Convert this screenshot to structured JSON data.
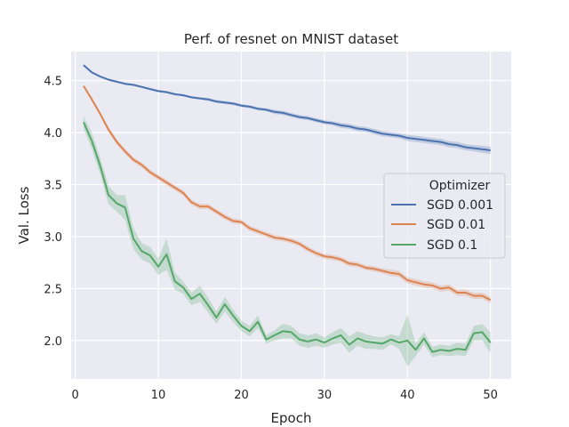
{
  "chart_data": {
    "type": "line",
    "title": "Perf. of resnet on MNIST dataset",
    "xlabel": "Epoch",
    "ylabel": "Val. Loss",
    "xlim": [
      -0.5,
      52.5
    ],
    "ylim": [
      1.63,
      4.78
    ],
    "xticks": [
      0,
      10,
      20,
      30,
      40,
      50
    ],
    "yticks": [
      2.0,
      2.5,
      3.0,
      3.5,
      4.0,
      4.5
    ],
    "ytick_labels": [
      "2.0",
      "2.5",
      "3.0",
      "3.5",
      "4.0",
      "4.5"
    ],
    "grid": true,
    "background": "#eaeaf2",
    "legend": {
      "title": "Optimizer",
      "placement": "center-right"
    },
    "x": [
      1,
      2,
      3,
      4,
      5,
      6,
      7,
      8,
      9,
      10,
      11,
      12,
      13,
      14,
      15,
      16,
      17,
      18,
      19,
      20,
      21,
      22,
      23,
      24,
      25,
      26,
      27,
      28,
      29,
      30,
      31,
      32,
      33,
      34,
      35,
      36,
      37,
      38,
      39,
      40,
      41,
      42,
      43,
      44,
      45,
      46,
      47,
      48,
      49,
      50
    ],
    "series": [
      {
        "name": "SGD 0.001",
        "color": "#4c72b0",
        "values": [
          4.65,
          4.58,
          4.54,
          4.51,
          4.49,
          4.47,
          4.46,
          4.44,
          4.42,
          4.4,
          4.39,
          4.37,
          4.36,
          4.34,
          4.33,
          4.32,
          4.3,
          4.29,
          4.28,
          4.26,
          4.25,
          4.23,
          4.22,
          4.2,
          4.19,
          4.17,
          4.15,
          4.14,
          4.12,
          4.1,
          4.09,
          4.07,
          4.06,
          4.04,
          4.03,
          4.01,
          3.99,
          3.98,
          3.97,
          3.95,
          3.94,
          3.93,
          3.92,
          3.91,
          3.89,
          3.88,
          3.86,
          3.85,
          3.84,
          3.83
        ],
        "band": [
          0.01,
          0.01,
          0.01,
          0.01,
          0.01,
          0.01,
          0.01,
          0.01,
          0.01,
          0.01,
          0.01,
          0.01,
          0.01,
          0.01,
          0.01,
          0.015,
          0.015,
          0.015,
          0.015,
          0.015,
          0.015,
          0.015,
          0.015,
          0.02,
          0.02,
          0.02,
          0.02,
          0.02,
          0.02,
          0.02,
          0.02,
          0.025,
          0.025,
          0.025,
          0.025,
          0.025,
          0.025,
          0.025,
          0.025,
          0.03,
          0.03,
          0.03,
          0.03,
          0.03,
          0.03,
          0.03,
          0.03,
          0.03,
          0.035,
          0.035
        ]
      },
      {
        "name": "SGD 0.01",
        "color": "#dd8452",
        "values": [
          4.45,
          4.32,
          4.18,
          4.03,
          3.91,
          3.82,
          3.74,
          3.69,
          3.62,
          3.57,
          3.52,
          3.47,
          3.42,
          3.33,
          3.29,
          3.29,
          3.24,
          3.19,
          3.15,
          3.14,
          3.08,
          3.05,
          3.02,
          2.99,
          2.98,
          2.96,
          2.93,
          2.88,
          2.84,
          2.81,
          2.8,
          2.78,
          2.74,
          2.73,
          2.7,
          2.69,
          2.67,
          2.65,
          2.64,
          2.58,
          2.56,
          2.54,
          2.53,
          2.5,
          2.51,
          2.46,
          2.46,
          2.43,
          2.43,
          2.39
        ],
        "band": [
          0.01,
          0.02,
          0.02,
          0.025,
          0.025,
          0.025,
          0.025,
          0.025,
          0.025,
          0.025,
          0.025,
          0.025,
          0.025,
          0.025,
          0.025,
          0.025,
          0.025,
          0.025,
          0.025,
          0.025,
          0.025,
          0.025,
          0.025,
          0.025,
          0.025,
          0.025,
          0.025,
          0.025,
          0.025,
          0.025,
          0.025,
          0.025,
          0.025,
          0.025,
          0.025,
          0.025,
          0.025,
          0.03,
          0.03,
          0.03,
          0.03,
          0.03,
          0.03,
          0.03,
          0.03,
          0.03,
          0.03,
          0.03,
          0.03,
          0.03
        ]
      },
      {
        "name": "SGD 0.1",
        "color": "#55a868",
        "values": [
          4.1,
          3.92,
          3.68,
          3.4,
          3.32,
          3.28,
          2.98,
          2.86,
          2.82,
          2.71,
          2.83,
          2.57,
          2.51,
          2.4,
          2.45,
          2.34,
          2.22,
          2.35,
          2.24,
          2.14,
          2.09,
          2.18,
          2.01,
          2.05,
          2.09,
          2.08,
          2.01,
          1.99,
          2.01,
          1.98,
          2.02,
          2.05,
          1.96,
          2.02,
          1.99,
          1.98,
          1.97,
          2.01,
          1.98,
          2.0,
          1.91,
          2.02,
          1.89,
          1.91,
          1.9,
          1.92,
          1.91,
          2.07,
          2.08,
          1.98
        ],
        "band": [
          0.06,
          0.08,
          0.08,
          0.09,
          0.08,
          0.12,
          0.1,
          0.08,
          0.08,
          0.08,
          0.15,
          0.08,
          0.06,
          0.06,
          0.08,
          0.07,
          0.06,
          0.07,
          0.06,
          0.05,
          0.05,
          0.06,
          0.04,
          0.05,
          0.07,
          0.06,
          0.06,
          0.06,
          0.06,
          0.05,
          0.06,
          0.07,
          0.08,
          0.07,
          0.07,
          0.06,
          0.06,
          0.05,
          0.06,
          0.25,
          0.06,
          0.06,
          0.05,
          0.05,
          0.05,
          0.06,
          0.06,
          0.07,
          0.08,
          0.1
        ]
      }
    ]
  }
}
